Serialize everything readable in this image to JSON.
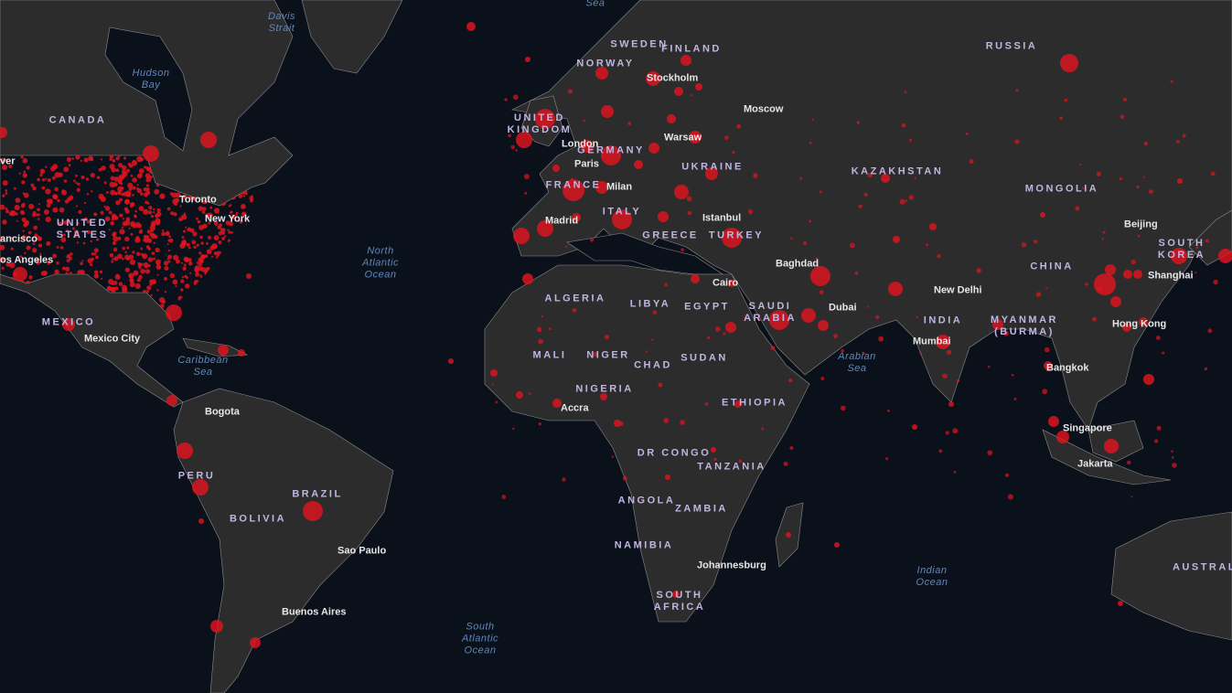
{
  "map": {
    "theme": "dark",
    "colors": {
      "water": "#0b111b",
      "land": "#2c2c2c",
      "border": "#9a9a9a",
      "bubble": "#e0141e",
      "country_label": "#c2b4e0",
      "city_label": "#e6e6e6",
      "ocean_label": "#5f87bd"
    },
    "labels": {
      "countries": [
        "CANADA",
        "UNITED\nSTATES",
        "MEXICO",
        "PERU",
        "BRAZIL",
        "BOLIVIA",
        "SWEDEN",
        "FINLAND",
        "NORWAY",
        "UNITED\nKINGDOM",
        "GERMANY",
        "FRANCE",
        "ITALY",
        "UKRAINE",
        "RUSSIA",
        "KAZAKHSTAN",
        "MONGOLIA",
        "TURKEY",
        "GREECE",
        "ALGERIA",
        "LIBYA",
        "EGYPT",
        "SAUDI\nARABIA",
        "MALI",
        "NIGER",
        "CHAD",
        "SUDAN",
        "NIGERIA",
        "ETHIOPIA",
        "DR CONGO",
        "TANZANIA",
        "ANGOLA",
        "ZAMBIA",
        "NAMIBIA",
        "SOUTH\nAFRICA",
        "INDIA",
        "CHINA",
        "MYANMAR\n(BURMA)",
        "SOUTH\nKOREA",
        "AUSTRAL"
      ],
      "cities": [
        "Toronto",
        "New York",
        "ancisco",
        "os Angeles",
        "ver",
        "Mexico City",
        "Bogota",
        "Sao Paulo",
        "Buenos Aires",
        "London",
        "Paris",
        "Milan",
        "Madrid",
        "Stockholm",
        "Moscow",
        "Warsaw",
        "Istanbul",
        "Cairo",
        "Baghdad",
        "Dubai",
        "Mumbai",
        "New Delhi",
        "Beijing",
        "Shanghai",
        "Hong Kong",
        "Bangkok",
        "Singapore",
        "Jakarta",
        "Accra",
        "Johannesburg"
      ],
      "oceans": [
        "Sea",
        "Davis\nStrait",
        "Hudson\nBay",
        "North\nAtlantic\nOcean",
        "Caribbean\nSea",
        "Arabian\nSea",
        "Indian\nOcean",
        "South\nAtlantic\nOcean"
      ]
    }
  }
}
